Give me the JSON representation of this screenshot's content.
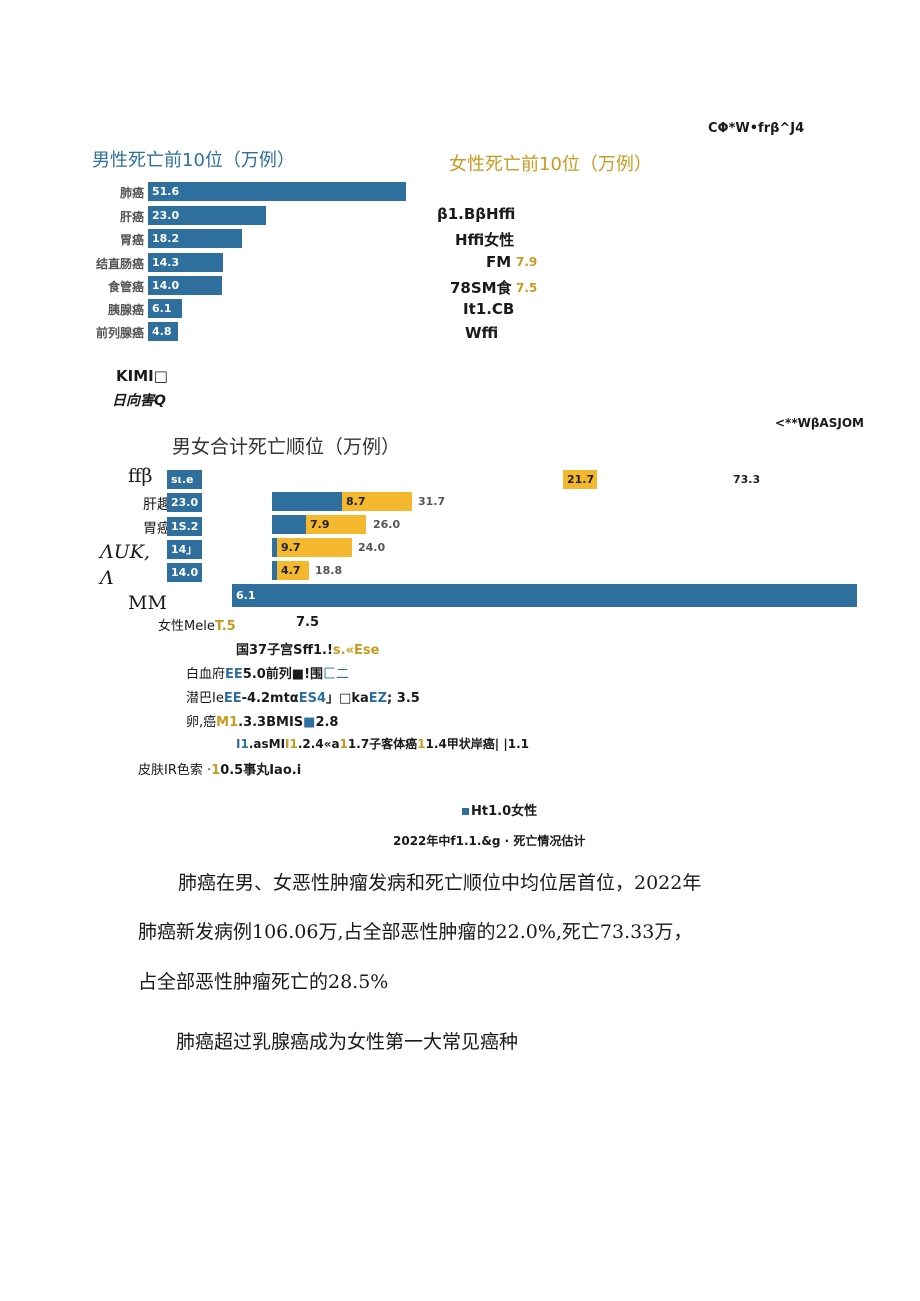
{
  "header_right_1": "CΦ*W•frβ^J4",
  "male_chart": {
    "title": "男性死亡前10位（万例）",
    "bars": [
      {
        "label": "肺癌",
        "value": "51.6"
      },
      {
        "label": "肝癌",
        "value": "23.0"
      },
      {
        "label": "胃癌",
        "value": "18.2"
      },
      {
        "label": "结直肠癌",
        "value": "14.3"
      },
      {
        "label": "食管癌",
        "value": "14.0"
      },
      {
        "label": "胰腺癌",
        "value": "6.1"
      },
      {
        "label": "前列腺癌",
        "value": "4.8"
      }
    ]
  },
  "female_chart": {
    "title": "女性死亡前10位（万例）",
    "lines": [
      {
        "text": "β1.BβHffi",
        "value": ""
      },
      {
        "text": "Hffi女性",
        "value": ""
      },
      {
        "text": "FM",
        "value": "7.9"
      },
      {
        "text": "78SM食",
        "value": "7.5"
      },
      {
        "text": "It1.CB",
        "value": ""
      },
      {
        "text": "Wffi",
        "value": ""
      }
    ]
  },
  "mid_left_1": "KIMI□",
  "mid_left_2": "日向害Q",
  "header_right_2": "<**WβASJOM",
  "combined_chart": {
    "title": "男女合计死亡顺位（万例）",
    "rows": [
      {
        "label": "ffβ",
        "male": "sι.e",
        "female": "21.7",
        "total": "73.3"
      },
      {
        "label": "肝趣",
        "male": "23.0",
        "female": "8.7",
        "total": "31.7"
      },
      {
        "label": "胃癌",
        "male": "1S.2",
        "female": "7.9",
        "total": "26.0"
      },
      {
        "label": "ΛUK,",
        "male": "14」",
        "female": "9.7",
        "total": "24.0"
      },
      {
        "label": "Λ",
        "male": "14.0",
        "female": "4.7",
        "total": "18.8"
      },
      {
        "label": "MM",
        "male": "6.1",
        "female": "",
        "total": ""
      }
    ]
  },
  "list_lines": [
    {
      "a": "女性Mele",
      "b": "T.5",
      "c": "7.5"
    },
    {
      "a": "国37子宫Sff1.!",
      "b": "s.«Ese",
      "c": ""
    },
    {
      "a": "白血府",
      "b": "EE",
      "c": "5.0前列■!围",
      "d": "匚二"
    },
    {
      "a": "潜巴Ie",
      "b": "EE",
      "c": "-4.2mtα",
      "d": "ES4",
      "e": "」□ka",
      "f": "EZ",
      "g": "; 3.5"
    },
    {
      "a": "卵,癌",
      "b": "M1",
      "c": ".3.3BMIS",
      "d": "■",
      "e": "2.8"
    },
    {
      "a": "I1",
      "b": ".asMI",
      "c": "I1",
      "d": ".2.4«a",
      "e": "1",
      "f": "1.7子客体癌",
      "g": "1",
      "h": "1.4甲状岸癌| |1.1"
    },
    {
      "a": "皮肤IR色索 ·",
      "b": "1",
      "c": "0.5事丸Iao.i"
    }
  ],
  "legend": "Ht1.0女性",
  "caption": "2022年中f1.1.&g · 死亡情况估计",
  "paragraphs": [
    "肺癌在男、女恶性肿瘤发病和死亡顺位中均位居首位，2022年",
    "肺癌新发病例106.06万,占全部恶性肿瘤的22.0%,死亡73.33万，",
    "占全部恶性肿瘤死亡的28.5%",
    "肺癌超过乳腺癌成为女性第一大常见癌种"
  ],
  "colors": {
    "male": "#2e6f9e",
    "female": "#f3b82e",
    "female_text": "#c99a1f"
  }
}
